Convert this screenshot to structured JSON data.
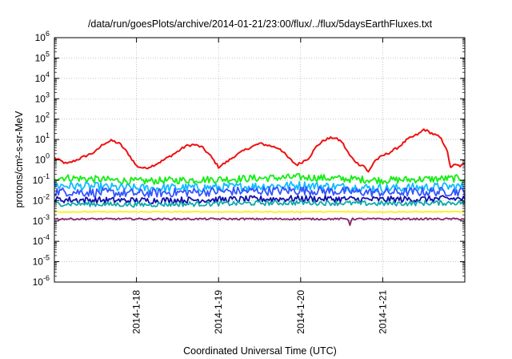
{
  "chart_data": {
    "type": "line",
    "title": "/data/run/goesPlots/archive/2014-01-21/23:00/flux/../flux/5daysEarthFluxes.txt",
    "xlabel": "Coordinated Universal Time (UTC)",
    "ylabel": "protons/cm²-s-sr-MeV",
    "y_scale": "log",
    "ylim_exponent": [
      -6,
      6
    ],
    "y_tick_base": "10",
    "y_tick_exponents": [
      "-6",
      "-5",
      "-4",
      "-3",
      "-2",
      "-1",
      "0",
      "1",
      "2",
      "3",
      "4",
      "5",
      "6"
    ],
    "x_start": "2014-01-17T00:00",
    "x_end": "2014-01-22T00:00",
    "x_ticks": [
      "2014-1-18",
      "2014-1-19",
      "2014-1-20",
      "2014-1-21"
    ],
    "grid": true,
    "series": [
      {
        "color": "#ee1111",
        "log10_points": [
          [
            0.0,
            0.1
          ],
          [
            0.15,
            -0.2
          ],
          [
            0.3,
            0.05
          ],
          [
            0.5,
            0.4
          ],
          [
            0.6,
            0.8
          ],
          [
            0.7,
            0.95
          ],
          [
            0.8,
            0.78
          ],
          [
            0.9,
            0.3
          ],
          [
            1.0,
            -0.3
          ],
          [
            1.1,
            -0.42
          ],
          [
            1.2,
            -0.28
          ],
          [
            1.3,
            -0.08
          ],
          [
            1.5,
            0.4
          ],
          [
            1.6,
            0.68
          ],
          [
            1.7,
            0.75
          ],
          [
            1.8,
            0.62
          ],
          [
            1.9,
            0.2
          ],
          [
            2.0,
            -0.35
          ],
          [
            2.1,
            -0.1
          ],
          [
            2.2,
            0.2
          ],
          [
            2.35,
            0.55
          ],
          [
            2.5,
            0.8
          ],
          [
            2.6,
            0.72
          ],
          [
            2.75,
            0.55
          ],
          [
            2.85,
            0.1
          ],
          [
            2.95,
            -0.25
          ],
          [
            3.0,
            -0.15
          ],
          [
            3.1,
            0.1
          ],
          [
            3.2,
            0.7
          ],
          [
            3.3,
            1.0
          ],
          [
            3.4,
            1.1
          ],
          [
            3.5,
            0.9
          ],
          [
            3.6,
            0.2
          ],
          [
            3.7,
            -0.2
          ],
          [
            3.78,
            -0.3
          ],
          [
            3.82,
            -0.65
          ],
          [
            3.9,
            -0.05
          ],
          [
            4.0,
            0.2
          ],
          [
            4.1,
            0.4
          ],
          [
            4.2,
            0.65
          ],
          [
            4.3,
            1.0
          ],
          [
            4.45,
            1.3
          ],
          [
            4.5,
            1.5
          ],
          [
            4.6,
            1.3
          ],
          [
            4.7,
            1.1
          ],
          [
            4.78,
            0.55
          ],
          [
            4.82,
            -0.35
          ],
          [
            4.88,
            -0.25
          ],
          [
            4.95,
            -0.3
          ],
          [
            5.0,
            -0.2
          ]
        ]
      },
      {
        "color": "#11ee11",
        "log10_points": [
          [
            0.0,
            -0.85
          ],
          [
            1.0,
            -1.05
          ],
          [
            2.0,
            -0.95
          ],
          [
            3.0,
            -0.85
          ],
          [
            4.0,
            -1.0
          ],
          [
            5.0,
            -0.9
          ]
        ]
      },
      {
        "color": "#11bbff",
        "log10_points": [
          [
            0.0,
            -1.25
          ],
          [
            1.0,
            -1.4
          ],
          [
            2.0,
            -1.35
          ],
          [
            3.0,
            -1.25
          ],
          [
            4.0,
            -1.4
          ],
          [
            5.0,
            -1.3
          ]
        ]
      },
      {
        "color": "#3355ff",
        "log10_points": [
          [
            0.0,
            -1.55
          ],
          [
            1.0,
            -1.65
          ],
          [
            2.0,
            -1.55
          ],
          [
            3.0,
            -1.5
          ],
          [
            4.0,
            -1.6
          ],
          [
            5.0,
            -1.55
          ]
        ]
      },
      {
        "color": "#1111aa",
        "log10_points": [
          [
            0.0,
            -1.95
          ],
          [
            1.0,
            -2.0
          ],
          [
            2.0,
            -1.95
          ],
          [
            3.0,
            -1.9
          ],
          [
            4.0,
            -1.95
          ],
          [
            5.0,
            -1.9
          ]
        ]
      },
      {
        "color": "#11aaaa",
        "log10_points": [
          [
            0.0,
            -2.15
          ],
          [
            1.0,
            -2.2
          ],
          [
            2.0,
            -2.15
          ],
          [
            3.0,
            -2.1
          ],
          [
            4.0,
            -2.15
          ],
          [
            5.0,
            -2.1
          ]
        ]
      },
      {
        "color": "#ffee22",
        "log10_points": [
          [
            0.0,
            -2.55
          ],
          [
            1.0,
            -2.55
          ],
          [
            2.0,
            -2.55
          ],
          [
            3.0,
            -2.55
          ],
          [
            4.0,
            -2.55
          ],
          [
            5.0,
            -2.55
          ]
        ]
      },
      {
        "color": "#882266",
        "log10_points": [
          [
            0.0,
            -2.9
          ],
          [
            1.0,
            -2.9
          ],
          [
            2.0,
            -2.9
          ],
          [
            3.0,
            -2.9
          ],
          [
            3.58,
            -2.9
          ],
          [
            3.6,
            -3.2
          ],
          [
            3.62,
            -2.9
          ],
          [
            4.0,
            -2.9
          ],
          [
            5.0,
            -2.9
          ]
        ]
      }
    ]
  }
}
